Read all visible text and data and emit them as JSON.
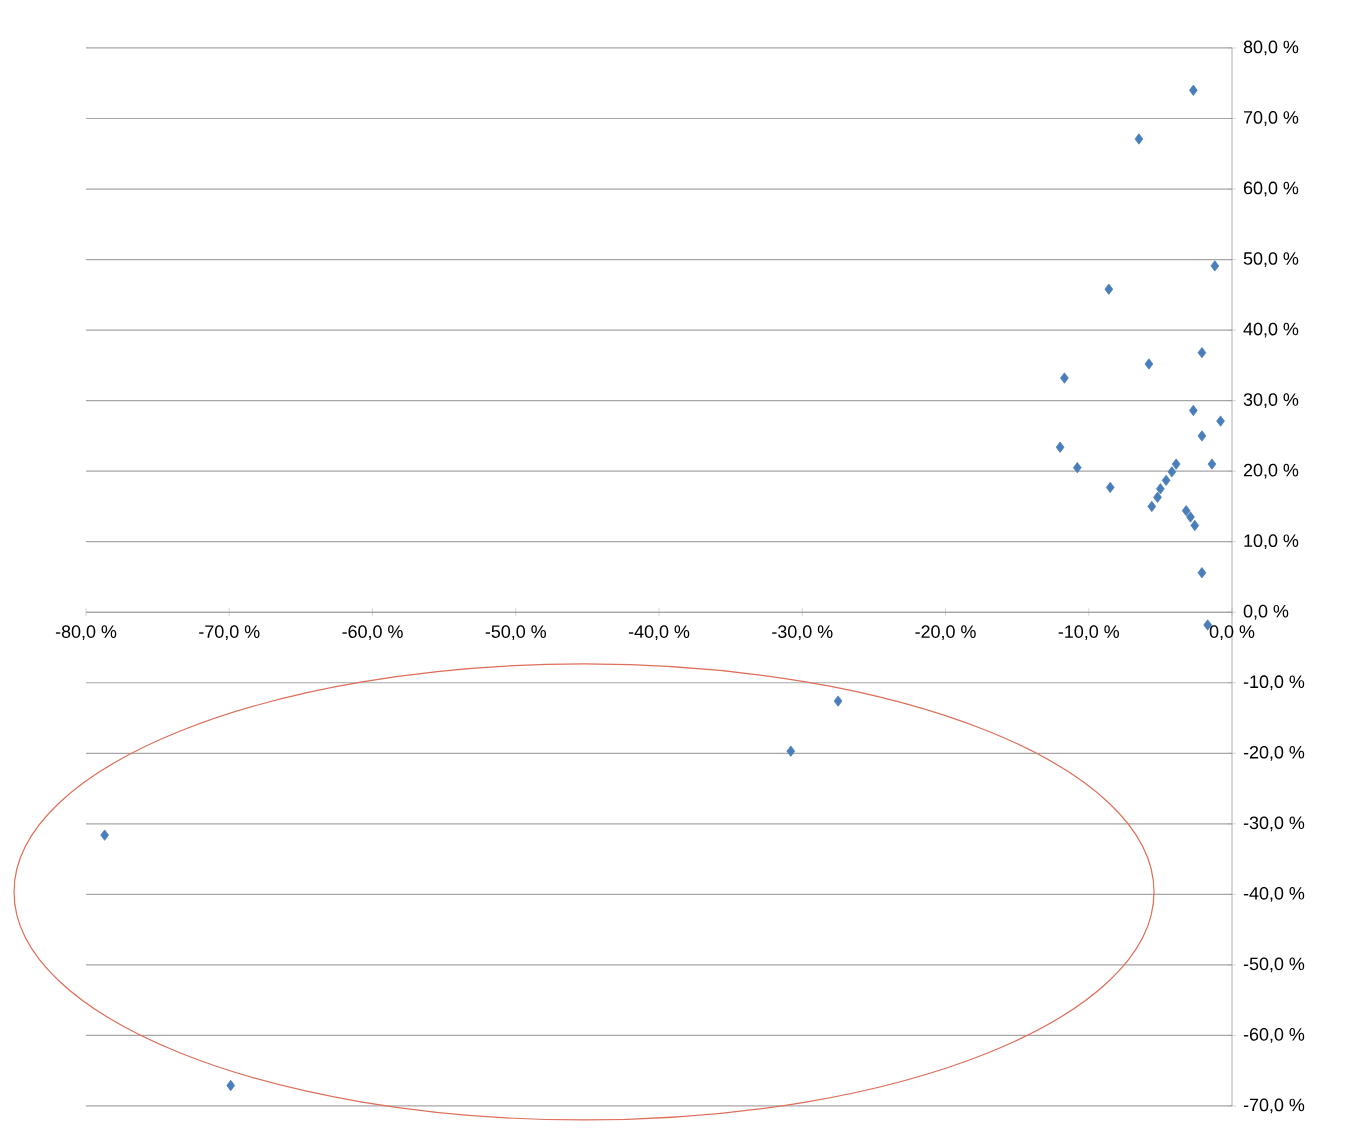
{
  "chart_data": {
    "type": "scatter",
    "marker": "diamond",
    "grid": "y",
    "xlim": [
      -80,
      0
    ],
    "ylim": [
      -70,
      80
    ],
    "xticks": [
      {
        "value": -80,
        "label": "-80,0 %"
      },
      {
        "value": -70,
        "label": "-70,0 %"
      },
      {
        "value": -60,
        "label": "-60,0 %"
      },
      {
        "value": -50,
        "label": "-50,0 %"
      },
      {
        "value": -40,
        "label": "-40,0 %"
      },
      {
        "value": -30,
        "label": "-30,0 %"
      },
      {
        "value": -20,
        "label": "-20,0 %"
      },
      {
        "value": -10,
        "label": "-10,0 %"
      },
      {
        "value": 0,
        "label": "0,0 %"
      }
    ],
    "yticks": [
      {
        "value": -70,
        "label": "-70,0 %"
      },
      {
        "value": -60,
        "label": "-60,0 %"
      },
      {
        "value": -50,
        "label": "-50,0 %"
      },
      {
        "value": -40,
        "label": "-40,0 %"
      },
      {
        "value": -30,
        "label": "-30,0 %"
      },
      {
        "value": -20,
        "label": "-20,0 %"
      },
      {
        "value": -10,
        "label": "-10,0 %"
      },
      {
        "value": 0,
        "label": "0,0 %"
      },
      {
        "value": 10,
        "label": "10,0 %"
      },
      {
        "value": 20,
        "label": "20,0 %"
      },
      {
        "value": 30,
        "label": "30,0 %"
      },
      {
        "value": 40,
        "label": "40,0 %"
      },
      {
        "value": 50,
        "label": "50,0 %"
      },
      {
        "value": 60,
        "label": "60,0 %"
      },
      {
        "value": 70,
        "label": "70,0 %"
      },
      {
        "value": 80,
        "label": "80,0 %"
      }
    ],
    "series": [
      {
        "color": "#4a7ebb",
        "x": [
          -2.7,
          -6.5,
          -1.2,
          -8.6,
          -2.1,
          -5.8,
          -11.7,
          -2.7,
          -0.8,
          -2.1,
          -12.0,
          -10.8,
          -1.4,
          -8.5,
          -3.9,
          -4.2,
          -4.6,
          -5.0,
          -5.2,
          -5.6,
          -3.2,
          -2.9,
          -2.6,
          -2.1,
          -1.7,
          -27.5,
          -30.8,
          -78.7,
          -69.9
        ],
        "values": [
          74.0,
          67.1,
          49.1,
          45.8,
          36.8,
          35.2,
          33.2,
          28.6,
          27.1,
          25.0,
          23.4,
          20.5,
          21.0,
          17.7,
          21.0,
          19.9,
          18.7,
          17.5,
          16.3,
          15.0,
          14.4,
          13.5,
          12.3,
          5.6,
          -1.8,
          -12.6,
          -19.7,
          -31.6,
          -67.1
        ]
      }
    ]
  }
}
